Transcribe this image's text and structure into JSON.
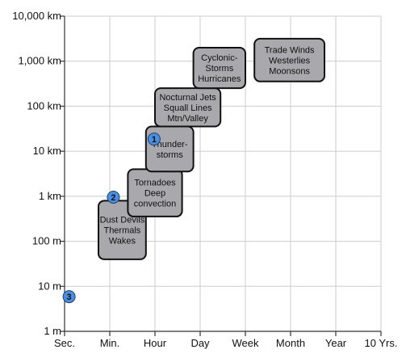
{
  "chart_data": {
    "type": "diagram",
    "x_axis": {
      "scale": "log-time",
      "ticks": [
        "Sec.",
        "Min.",
        "Hour",
        "Day",
        "Week",
        "Month",
        "Year",
        "10 Yrs."
      ]
    },
    "y_axis": {
      "scale": "log",
      "ticks": [
        "1 m",
        "10 m",
        "100 m",
        "1 km",
        "10 km",
        "100 km",
        "1,000 km",
        "10,000 km"
      ]
    },
    "grid": true,
    "colors": {
      "box_fill": "#a9a9ad",
      "box_stroke": "#111111",
      "marker_fill": "#4a90e2",
      "axis": "#333333",
      "grid": "#cccccc"
    },
    "phenomena": [
      {
        "lines": [
          "Dust Devils",
          "Thermals",
          "Wakes"
        ],
        "time": [
          0.75,
          1.8
        ],
        "size": [
          1.6,
          2.9
        ]
      },
      {
        "lines": [
          "Tornadoes",
          "Deep",
          "convection"
        ],
        "time": [
          1.4,
          2.6
        ],
        "size": [
          2.55,
          3.6
        ]
      },
      {
        "lines": [
          "Thunder-",
          "storms"
        ],
        "time": [
          1.8,
          2.85
        ],
        "size": [
          3.55,
          4.55
        ]
      },
      {
        "lines": [
          "Nocturnal Jets",
          "Squall Lines",
          "Mtn/Valley"
        ],
        "time": [
          2.0,
          3.45
        ],
        "size": [
          4.55,
          5.4
        ]
      },
      {
        "lines": [
          "Cyclonic-",
          "Storms",
          "Hurricanes"
        ],
        "time": [
          2.85,
          4.0
        ],
        "size": [
          5.4,
          6.3
        ]
      },
      {
        "lines": [
          "Trade Winds",
          "Westerlies",
          "Moonsons"
        ],
        "time": [
          4.2,
          5.75
        ],
        "size": [
          5.55,
          6.5
        ]
      }
    ],
    "markers": [
      {
        "label": "1",
        "time": 1.98,
        "size": 4.27
      },
      {
        "label": "2",
        "time": 1.08,
        "size": 2.98
      },
      {
        "label": "3",
        "time": 0.1,
        "size": 0.77
      }
    ]
  }
}
